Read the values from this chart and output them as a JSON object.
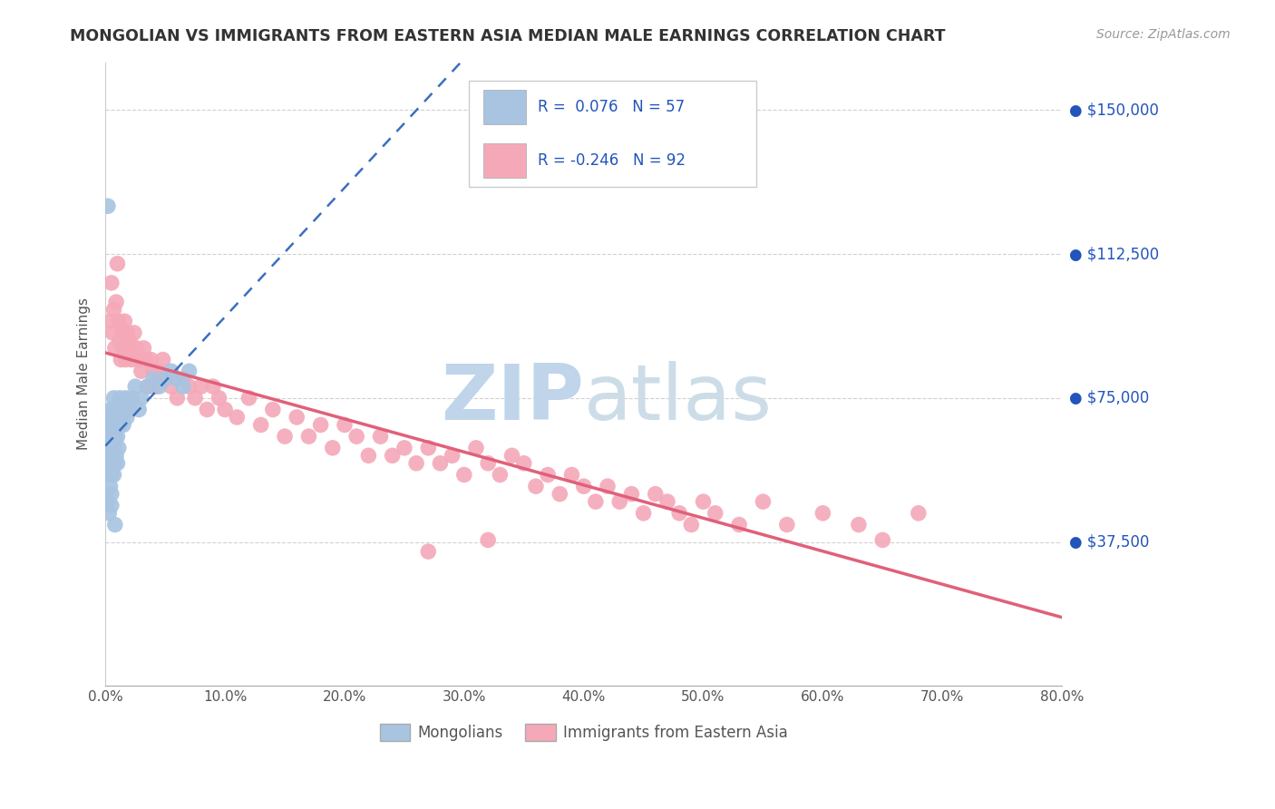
{
  "title": "MONGOLIAN VS IMMIGRANTS FROM EASTERN ASIA MEDIAN MALE EARNINGS CORRELATION CHART",
  "source": "Source: ZipAtlas.com",
  "ylabel": "Median Male Earnings",
  "ytick_labels": [
    "$37,500",
    "$75,000",
    "$112,500",
    "$150,000"
  ],
  "ytick_values": [
    37500,
    75000,
    112500,
    150000
  ],
  "ymin": 0,
  "ymax": 162500,
  "xmin": 0.0,
  "xmax": 0.8,
  "r_mongolian": 0.076,
  "n_mongolian": 57,
  "r_eastern_asia": -0.246,
  "n_eastern_asia": 92,
  "color_mongolian": "#a8c4e0",
  "color_eastern_asia": "#f4a8b8",
  "line_color_mongolian": "#3a6fbf",
  "line_color_eastern_asia": "#e0607a",
  "watermark_zip_color": "#b8cfe8",
  "watermark_atlas_color": "#c8d8e8",
  "mongolian_x": [
    0.001,
    0.001,
    0.002,
    0.002,
    0.003,
    0.003,
    0.003,
    0.004,
    0.004,
    0.004,
    0.004,
    0.005,
    0.005,
    0.005,
    0.005,
    0.005,
    0.006,
    0.006,
    0.006,
    0.007,
    0.007,
    0.007,
    0.007,
    0.008,
    0.008,
    0.008,
    0.009,
    0.009,
    0.009,
    0.01,
    0.01,
    0.01,
    0.011,
    0.011,
    0.012,
    0.012,
    0.013,
    0.014,
    0.015,
    0.016,
    0.017,
    0.018,
    0.02,
    0.022,
    0.025,
    0.028,
    0.03,
    0.035,
    0.04,
    0.045,
    0.05,
    0.055,
    0.06,
    0.065,
    0.07,
    0.002,
    0.008
  ],
  "mongolian_y": [
    68000,
    55000,
    62000,
    48000,
    70000,
    58000,
    45000,
    65000,
    52000,
    60000,
    72000,
    68000,
    55000,
    62000,
    50000,
    47000,
    65000,
    58000,
    72000,
    68000,
    62000,
    55000,
    75000,
    70000,
    65000,
    58000,
    72000,
    60000,
    68000,
    65000,
    72000,
    58000,
    70000,
    62000,
    68000,
    75000,
    72000,
    70000,
    68000,
    72000,
    75000,
    70000,
    72000,
    75000,
    78000,
    72000,
    75000,
    78000,
    80000,
    78000,
    80000,
    82000,
    80000,
    78000,
    82000,
    125000,
    42000
  ],
  "eastern_asia_x": [
    0.004,
    0.005,
    0.006,
    0.007,
    0.008,
    0.009,
    0.01,
    0.011,
    0.012,
    0.013,
    0.014,
    0.015,
    0.016,
    0.017,
    0.018,
    0.019,
    0.02,
    0.022,
    0.024,
    0.026,
    0.028,
    0.03,
    0.032,
    0.034,
    0.036,
    0.038,
    0.04,
    0.042,
    0.044,
    0.046,
    0.048,
    0.05,
    0.055,
    0.06,
    0.065,
    0.07,
    0.075,
    0.08,
    0.085,
    0.09,
    0.095,
    0.1,
    0.11,
    0.12,
    0.13,
    0.14,
    0.15,
    0.16,
    0.17,
    0.18,
    0.19,
    0.2,
    0.21,
    0.22,
    0.23,
    0.24,
    0.25,
    0.26,
    0.27,
    0.28,
    0.29,
    0.3,
    0.31,
    0.32,
    0.33,
    0.34,
    0.35,
    0.36,
    0.37,
    0.38,
    0.39,
    0.4,
    0.41,
    0.42,
    0.43,
    0.44,
    0.45,
    0.46,
    0.47,
    0.48,
    0.49,
    0.5,
    0.51,
    0.53,
    0.55,
    0.57,
    0.6,
    0.63,
    0.65,
    0.68,
    0.32,
    0.27
  ],
  "eastern_asia_y": [
    95000,
    105000,
    92000,
    98000,
    88000,
    100000,
    110000,
    95000,
    90000,
    85000,
    92000,
    88000,
    95000,
    85000,
    92000,
    88000,
    90000,
    85000,
    92000,
    88000,
    85000,
    82000,
    88000,
    85000,
    78000,
    85000,
    82000,
    78000,
    82000,
    80000,
    85000,
    80000,
    78000,
    75000,
    80000,
    78000,
    75000,
    78000,
    72000,
    78000,
    75000,
    72000,
    70000,
    75000,
    68000,
    72000,
    65000,
    70000,
    65000,
    68000,
    62000,
    68000,
    65000,
    60000,
    65000,
    60000,
    62000,
    58000,
    62000,
    58000,
    60000,
    55000,
    62000,
    58000,
    55000,
    60000,
    58000,
    52000,
    55000,
    50000,
    55000,
    52000,
    48000,
    52000,
    48000,
    50000,
    45000,
    50000,
    48000,
    45000,
    42000,
    48000,
    45000,
    42000,
    48000,
    42000,
    45000,
    42000,
    38000,
    45000,
    38000,
    35000
  ]
}
